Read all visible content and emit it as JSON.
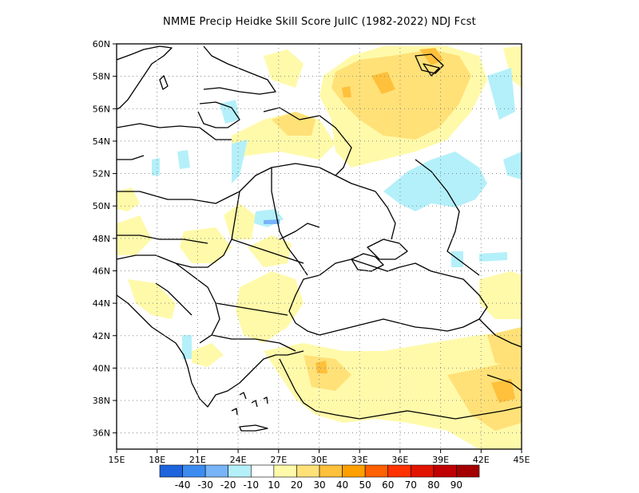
{
  "title": "NMME Precip Heidke Skill Score JulIC (1982-2022) NDJ Fcst",
  "map": {
    "lon_range": [
      15,
      45
    ],
    "lat_range": [
      35,
      60
    ],
    "lat_ticks": [
      "60N",
      "58N",
      "56N",
      "54N",
      "52N",
      "50N",
      "48N",
      "46N",
      "44N",
      "42N",
      "40N",
      "38N",
      "36N"
    ],
    "lon_ticks": [
      "15E",
      "18E",
      "21E",
      "24E",
      "27E",
      "30E",
      "33E",
      "36E",
      "39E",
      "42E",
      "45E"
    ],
    "grid": "dotted"
  },
  "colorbar": {
    "colors": [
      "#1e64dc",
      "#3c8cf0",
      "#78b4f8",
      "#b4f0fa",
      "#ffffff",
      "#fffaaa",
      "#ffe178",
      "#ffc03c",
      "#ffa000",
      "#ff6000",
      "#ff3200",
      "#e11400",
      "#c00000",
      "#a50000"
    ],
    "labels": [
      "-40",
      "-30",
      "-20",
      "-10",
      "10",
      "20",
      "30",
      "40",
      "50",
      "60",
      "70",
      "80",
      "90"
    ]
  }
}
